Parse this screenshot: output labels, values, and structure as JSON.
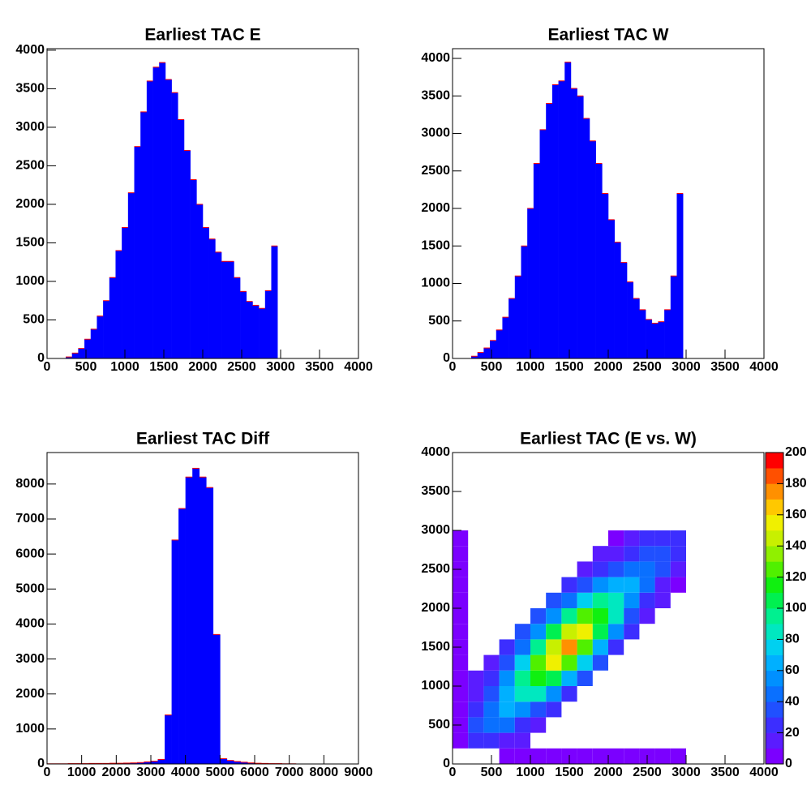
{
  "chart_data": [
    {
      "type": "histogram",
      "title": "Earliest TAC E",
      "color": "#0000ff",
      "line_color": "#ff0000",
      "bins": [
        0,
        80,
        160,
        240,
        320,
        400,
        480,
        560,
        640,
        720,
        800,
        880,
        960,
        1040,
        1120,
        1200,
        1280,
        1360,
        1440,
        1520,
        1600,
        1680,
        1760,
        1840,
        1920,
        2000,
        2080,
        2160,
        2240,
        2320,
        2400,
        2480,
        2560,
        2640,
        2720,
        2800,
        2880,
        2960,
        3040,
        3120,
        3200,
        3280,
        3360,
        3440,
        3520,
        3600,
        3680,
        3760,
        3840,
        3920,
        4000
      ],
      "values": [
        0,
        0,
        0,
        20,
        70,
        130,
        250,
        380,
        550,
        750,
        1050,
        1400,
        1700,
        2150,
        2750,
        3200,
        3600,
        3780,
        3840,
        3620,
        3450,
        3100,
        2700,
        2320,
        2000,
        1700,
        1550,
        1380,
        1260,
        1260,
        1050,
        870,
        740,
        690,
        650,
        880,
        1460,
        0,
        0,
        0,
        0,
        0,
        0,
        0,
        0,
        0,
        0,
        0,
        0,
        0
      ],
      "xlim": [
        0,
        4000
      ],
      "xticks": [
        0,
        500,
        1000,
        1500,
        2000,
        2500,
        3000,
        3500,
        4000
      ],
      "ylim": [
        0,
        4020
      ],
      "yticks": [
        0,
        500,
        1000,
        1500,
        2000,
        2500,
        3000,
        3500,
        4000
      ]
    },
    {
      "type": "histogram",
      "title": "Earliest TAC W",
      "color": "#0000ff",
      "line_color": "#ff0000",
      "bins": [
        0,
        80,
        160,
        240,
        320,
        400,
        480,
        560,
        640,
        720,
        800,
        880,
        960,
        1040,
        1120,
        1200,
        1280,
        1360,
        1440,
        1520,
        1600,
        1680,
        1760,
        1840,
        1920,
        2000,
        2080,
        2160,
        2240,
        2320,
        2400,
        2480,
        2560,
        2640,
        2720,
        2800,
        2880,
        2960,
        3040,
        3120,
        3200,
        3280,
        3360,
        3440,
        3520,
        3600,
        3680,
        3760,
        3840,
        3920,
        4000
      ],
      "values": [
        0,
        0,
        0,
        30,
        80,
        140,
        240,
        380,
        550,
        800,
        1100,
        1500,
        2000,
        2600,
        3050,
        3400,
        3650,
        3700,
        3950,
        3600,
        3500,
        3200,
        2900,
        2600,
        2200,
        1850,
        1550,
        1280,
        1020,
        800,
        650,
        520,
        470,
        490,
        650,
        1100,
        2200,
        0,
        0,
        0,
        0,
        0,
        0,
        0,
        0,
        0,
        0,
        0,
        0,
        0
      ],
      "xlim": [
        0,
        4000
      ],
      "xticks": [
        0,
        500,
        1000,
        1500,
        2000,
        2500,
        3000,
        3500,
        4000
      ],
      "ylim": [
        0,
        4130
      ],
      "yticks": [
        0,
        500,
        1000,
        1500,
        2000,
        2500,
        3000,
        3500,
        4000
      ]
    },
    {
      "type": "histogram",
      "title": "Earliest TAC Diff",
      "color": "#0000ff",
      "line_color": "#ff0000",
      "bins": [
        0,
        200,
        400,
        600,
        800,
        1000,
        1200,
        1400,
        1600,
        1800,
        2000,
        2200,
        2400,
        2600,
        2800,
        3000,
        3200,
        3400,
        3600,
        3800,
        4000,
        4200,
        4400,
        4600,
        4800,
        5000,
        5200,
        5400,
        5600,
        5800,
        6000,
        6200,
        6400,
        6600,
        6800,
        7000,
        7200,
        7400,
        7600,
        7800,
        8000,
        8200,
        8400,
        8600,
        8800,
        9000
      ],
      "values": [
        5,
        5,
        5,
        10,
        10,
        10,
        15,
        15,
        15,
        20,
        20,
        25,
        30,
        40,
        60,
        80,
        130,
        1400,
        6400,
        7300,
        8200,
        8450,
        8200,
        7900,
        3700,
        150,
        100,
        70,
        50,
        30,
        20,
        15,
        10,
        10,
        5,
        5,
        0,
        0,
        0,
        0,
        0,
        0,
        0,
        0,
        0
      ],
      "xlim": [
        0,
        9000
      ],
      "xticks": [
        0,
        1000,
        2000,
        3000,
        4000,
        5000,
        6000,
        7000,
        8000,
        9000
      ],
      "ylim": [
        0,
        8900
      ],
      "yticks": [
        0,
        1000,
        2000,
        3000,
        4000,
        5000,
        6000,
        7000,
        8000
      ]
    },
    {
      "type": "heatmap",
      "title": "Earliest TAC (E vs. W)",
      "x_bins": [
        0,
        200,
        400,
        600,
        800,
        1000,
        1200,
        1400,
        1600,
        1800,
        2000,
        2200,
        2400,
        2600,
        2800,
        3000
      ],
      "y_bins": [
        0,
        200,
        400,
        600,
        800,
        1000,
        1200,
        1400,
        1600,
        1800,
        2000,
        2200,
        2400,
        2600,
        2800,
        3000
      ],
      "z": [
        [
          0,
          0,
          0,
          3,
          3,
          3,
          3,
          3,
          3,
          3,
          3,
          3,
          3,
          3,
          3
        ],
        [
          3,
          26,
          27,
          19,
          10,
          0,
          0,
          0,
          0,
          0,
          0,
          0,
          0,
          0,
          0
        ],
        [
          3,
          31,
          43,
          41,
          27,
          14,
          0,
          0,
          0,
          0,
          0,
          0,
          0,
          0,
          0
        ],
        [
          3,
          26,
          46,
          60,
          57,
          38,
          20,
          0,
          0,
          0,
          0,
          0,
          0,
          0,
          0
        ],
        [
          3,
          18,
          36,
          64,
          85,
          82,
          54,
          27,
          0,
          0,
          0,
          0,
          0,
          0,
          0
        ],
        [
          3,
          12,
          25,
          51,
          92,
          119,
          109,
          69,
          32,
          0,
          0,
          0,
          0,
          0,
          0
        ],
        [
          3,
          0,
          17,
          36,
          71,
          122,
          153,
          129,
          77,
          32,
          0,
          0,
          0,
          0,
          0
        ],
        [
          3,
          0,
          0,
          24,
          48,
          92,
          145,
          170,
          129,
          69,
          27,
          0,
          0,
          0,
          0
        ],
        [
          3,
          0,
          0,
          0,
          31,
          57,
          102,
          145,
          153,
          109,
          54,
          20,
          0,
          0,
          0
        ],
        [
          3,
          0,
          0,
          0,
          0,
          34,
          57,
          92,
          122,
          119,
          82,
          38,
          14,
          0,
          0
        ],
        [
          3,
          0,
          0,
          0,
          0,
          0,
          31,
          48,
          71,
          92,
          85,
          57,
          27,
          10,
          0
        ],
        [
          3,
          0,
          0,
          0,
          0,
          0,
          0,
          24,
          36,
          51,
          64,
          60,
          41,
          19,
          7
        ],
        [
          3,
          0,
          0,
          0,
          0,
          0,
          0,
          0,
          17,
          25,
          36,
          46,
          43,
          30,
          15
        ],
        [
          3,
          0,
          0,
          0,
          0,
          0,
          0,
          0,
          0,
          12,
          18,
          26,
          34,
          34,
          23
        ],
        [
          3,
          0,
          0,
          0,
          0,
          0,
          0,
          0,
          0,
          0,
          9,
          13,
          20,
          26,
          26
        ]
      ],
      "palette": [
        "#7b00ff",
        "#5a1cff",
        "#3c2eff",
        "#2050ff",
        "#0a70ff",
        "#0090ff",
        "#00b0ff",
        "#00d0f0",
        "#00e8c0",
        "#00f090",
        "#00f050",
        "#10f010",
        "#50f000",
        "#90f000",
        "#c8f000",
        "#f0f000",
        "#ffc800",
        "#ff9000",
        "#ff5000",
        "#ff0000"
      ],
      "xlim": [
        0,
        4000
      ],
      "xticks": [
        0,
        500,
        1000,
        1500,
        2000,
        2500,
        3000,
        3500,
        4000
      ],
      "ylim": [
        0,
        4000
      ],
      "yticks": [
        0,
        500,
        1000,
        1500,
        2000,
        2500,
        3000,
        3500,
        4000
      ],
      "zlim": [
        0,
        200
      ],
      "zticks": [
        0,
        20,
        40,
        60,
        80,
        100,
        120,
        140,
        160,
        180,
        200
      ]
    }
  ]
}
